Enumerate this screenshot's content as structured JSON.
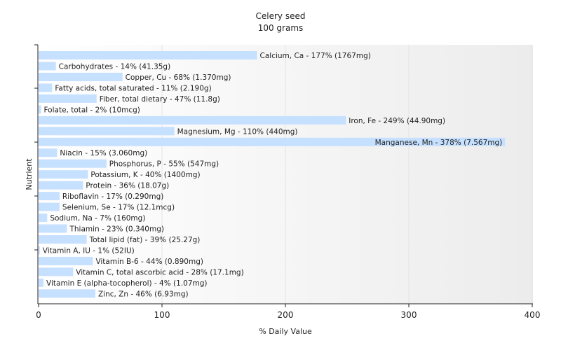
{
  "chart_data": {
    "type": "bar",
    "orientation": "horizontal",
    "title": "Celery seed",
    "subtitle": "100 grams",
    "xlabel": "% Daily Value",
    "ylabel": "Nutrient",
    "xlim": [
      0,
      400
    ],
    "xticks": [
      0,
      100,
      200,
      300,
      400
    ],
    "grid": true,
    "colors": {
      "bar": "#c6e0ff",
      "grid": "#e4e4e4",
      "axis": "#222222"
    },
    "categories": [
      "Calcium, Ca",
      "Carbohydrates",
      "Copper, Cu",
      "Fatty acids, total saturated",
      "Fiber, total dietary",
      "Folate, total",
      "Iron, Fe",
      "Magnesium, Mg",
      "Manganese, Mn",
      "Niacin",
      "Phosphorus, P",
      "Potassium, K",
      "Protein",
      "Riboflavin",
      "Selenium, Se",
      "Sodium, Na",
      "Thiamin",
      "Total lipid (fat)",
      "Vitamin A, IU",
      "Vitamin B-6",
      "Vitamin C, total ascorbic acid",
      "Vitamin E (alpha-tocopherol)",
      "Zinc, Zn"
    ],
    "values": [
      177,
      14,
      68,
      11,
      47,
      2,
      249,
      110,
      378,
      15,
      55,
      40,
      36,
      17,
      17,
      7,
      23,
      39,
      1,
      44,
      28,
      4,
      46
    ],
    "labels": [
      "Calcium, Ca - 177% (1767mg)",
      "Carbohydrates - 14% (41.35g)",
      "Copper, Cu - 68% (1.370mg)",
      "Fatty acids, total saturated - 11% (2.190g)",
      "Fiber, total dietary - 47% (11.8g)",
      "Folate, total - 2% (10mcg)",
      "Iron, Fe - 249% (44.90mg)",
      "Magnesium, Mg - 110% (440mg)",
      "Manganese, Mn - 378% (7.567mg)",
      "Niacin - 15% (3.060mg)",
      "Phosphorus, P - 55% (547mg)",
      "Potassium, K - 40% (1400mg)",
      "Protein - 36% (18.07g)",
      "Riboflavin - 17% (0.290mg)",
      "Selenium, Se - 17% (12.1mcg)",
      "Sodium, Na - 7% (160mg)",
      "Thiamin - 23% (0.340mg)",
      "Total lipid (fat) - 39% (25.27g)",
      "Vitamin A, IU - 1% (52IU)",
      "Vitamin B-6 - 44% (0.890mg)",
      "Vitamin C, total ascorbic acid - 28% (17.1mg)",
      "Vitamin E (alpha-tocopherol) - 4% (1.07mg)",
      "Zinc, Zn - 46% (6.93mg)"
    ]
  }
}
